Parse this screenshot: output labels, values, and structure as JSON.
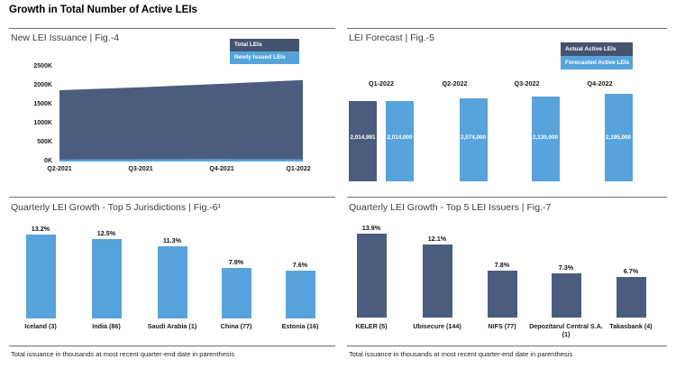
{
  "header": {
    "title": "Growth in Total Number of Active LEIs"
  },
  "panels": {
    "fig4": {
      "title": "New LEI Issuance | Fig.-4",
      "legend": [
        "Total LEIs",
        "Newly Issued LEIs"
      ]
    },
    "fig5": {
      "title": "LEI Forecast | Fig.-5",
      "legend": [
        "Actual Active LEIs",
        "Forecasted Active LEIs"
      ]
    },
    "fig6": {
      "title": "Quarterly LEI Growth - Top 5 Jurisdictions | Fig.-6¹",
      "footnote": "Total issuance in thousands at most recent quarter-end date in parenthesis"
    },
    "fig7": {
      "title": "Quarterly LEI Growth - Top 5 LEI Issuers | Fig.-7",
      "footnote": "Total issuance in thousands at most recent quarter-end date in parenthesis"
    }
  },
  "colors": {
    "dark_blue": "#4C5C7F",
    "dark_blue_legend": "#44536E",
    "light_blue": "#57A3DB"
  },
  "chart_data": [
    {
      "id": "fig4",
      "type": "area",
      "title": "New LEI Issuance | Fig.-4",
      "x": [
        "Q2-2021",
        "Q3-2021",
        "Q4-2021",
        "Q1-2022"
      ],
      "series": [
        {
          "name": "Total LEIs",
          "values": [
            1880000,
            1960000,
            2050000,
            2150000
          ]
        },
        {
          "name": "Newly Issued LEIs",
          "values": [
            55000,
            60000,
            65000,
            60000
          ]
        }
      ],
      "ylim": [
        0,
        2500000
      ],
      "yticks": [
        "0K",
        "500K",
        "1000K",
        "1500K",
        "2000K",
        "2500K"
      ],
      "grid": false,
      "legend_position": "top-right"
    },
    {
      "id": "fig5",
      "type": "bar",
      "title": "LEI Forecast | Fig.-5",
      "categories": [
        "Q1-2022",
        "Q2-2022",
        "Q3-2022",
        "Q4-2022"
      ],
      "series": [
        {
          "name": "Actual Active LEIs",
          "values": [
            2014991,
            null,
            null,
            null
          ]
        },
        {
          "name": "Forecasted Active LEIs",
          "values": [
            2014000,
            2074000,
            2130000,
            2195000
          ]
        }
      ],
      "ylim": [
        0,
        2195000
      ],
      "grid": false,
      "legend_position": "top-right"
    },
    {
      "id": "fig6",
      "type": "bar",
      "title": "Quarterly LEI Growth - Top 5 Jurisdictions | Fig.-6¹",
      "categories": [
        "Iceland (3)",
        "India (86)",
        "Saudi Arabia (1)",
        "China (77)",
        "Estonia (16)"
      ],
      "values": [
        13.2,
        12.5,
        11.3,
        7.9,
        7.6
      ],
      "unit": "%",
      "ylim": [
        0,
        14
      ],
      "grid": false
    },
    {
      "id": "fig7",
      "type": "bar",
      "title": "Quarterly LEI Growth - Top 5 LEI Issuers | Fig.-7",
      "categories": [
        "KELER (5)",
        "Ubisecure (144)",
        "NIFS (77)",
        "Depozitarul Central S.A. (1)",
        "Takasbank (4)"
      ],
      "values": [
        13.9,
        12.1,
        7.8,
        7.3,
        6.7
      ],
      "unit": "%",
      "ylim": [
        0,
        14
      ],
      "grid": false
    }
  ]
}
